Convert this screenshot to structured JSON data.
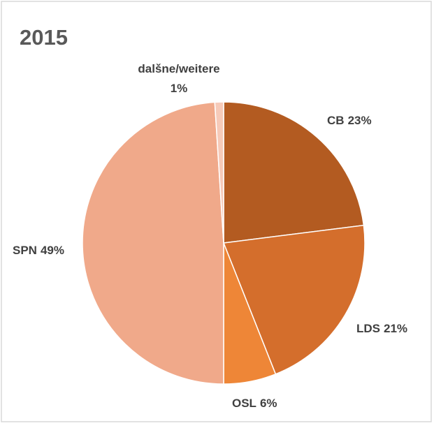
{
  "chart_data": {
    "type": "pie",
    "title": "2015",
    "categories": [
      "CB",
      "LDS",
      "OSL",
      "SPN",
      "dalšne/weitere"
    ],
    "values": [
      23,
      21,
      6,
      49,
      1
    ],
    "value_labels": [
      "23%",
      "21%",
      "6%",
      "49%",
      "1%"
    ],
    "colors": [
      "#b35b21",
      "#d46e2c",
      "#ee8637",
      "#f0a98a",
      "#f6cab9"
    ]
  }
}
